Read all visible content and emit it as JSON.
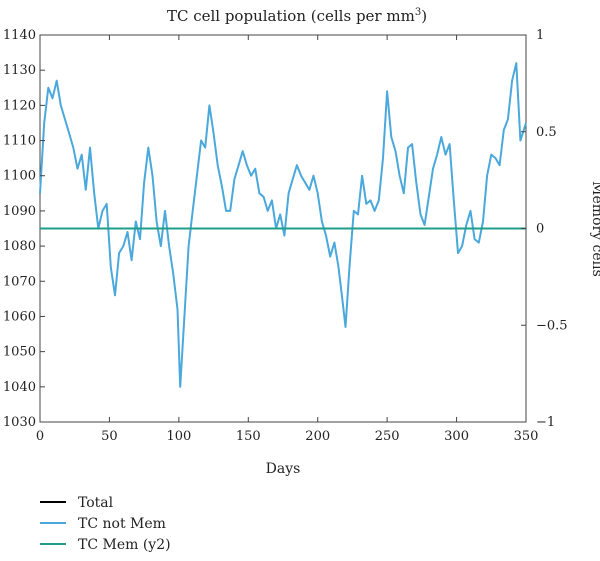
{
  "chart_data": {
    "type": "line",
    "title": "TC cell population (cells per mm",
    "title_superscript": "3",
    "title_close": ")",
    "xlabel": "Days",
    "ylabel": "",
    "y2label": "Memory cells",
    "xlim": [
      0,
      350
    ],
    "ylim": [
      1030,
      1140
    ],
    "y2lim": [
      -1,
      1
    ],
    "xticks": [
      "0",
      "50",
      "100",
      "150",
      "200",
      "250",
      "300",
      "350"
    ],
    "yticks": [
      "1030",
      "1040",
      "1050",
      "1060",
      "1070",
      "1080",
      "1090",
      "1100",
      "1110",
      "1120",
      "1130",
      "1140"
    ],
    "y2ticks": [
      "−1",
      "−0.5",
      "0",
      "0.5",
      "1"
    ],
    "grid": false,
    "legend_position": "bottom-left",
    "series": [
      {
        "name": "Total",
        "color": "#000000",
        "axis": "y",
        "x": [
          0,
          3,
          6,
          9,
          12,
          15,
          18,
          21,
          24,
          27,
          30,
          33,
          36,
          39,
          42,
          45,
          48,
          51,
          54,
          57,
          60,
          63,
          66,
          69,
          72,
          75,
          78,
          81,
          84,
          87,
          90,
          93,
          96,
          99,
          101,
          104,
          107,
          110,
          113,
          116,
          119,
          122,
          125,
          128,
          131,
          134,
          137,
          140,
          143,
          146,
          149,
          152,
          155,
          158,
          161,
          164,
          167,
          170,
          173,
          176,
          179,
          182,
          185,
          188,
          191,
          194,
          197,
          200,
          203,
          206,
          209,
          212,
          215,
          218,
          220,
          223,
          226,
          229,
          232,
          235,
          238,
          241,
          244,
          247,
          250,
          253,
          256,
          259,
          262,
          265,
          268,
          271,
          274,
          277,
          280,
          283,
          286,
          289,
          292,
          295,
          298,
          301,
          304,
          307,
          310,
          313,
          316,
          319,
          322,
          325,
          328,
          331,
          334,
          337,
          340,
          343,
          346,
          350
        ],
        "y": [
          1095,
          1115,
          1125,
          1122,
          1127,
          1120,
          1116,
          1112,
          1108,
          1102,
          1106,
          1096,
          1108,
          1095,
          1085,
          1090,
          1092,
          1074,
          1066,
          1078,
          1080,
          1084,
          1076,
          1087,
          1082,
          1098,
          1108,
          1100,
          1087,
          1080,
          1090,
          1080,
          1072,
          1062,
          1040,
          1060,
          1080,
          1090,
          1100,
          1110,
          1108,
          1120,
          1112,
          1103,
          1097,
          1090,
          1090,
          1099,
          1103,
          1107,
          1103,
          1100,
          1102,
          1095,
          1094,
          1090,
          1093,
          1085,
          1089,
          1083,
          1095,
          1099,
          1103,
          1100,
          1098,
          1096,
          1100,
          1095,
          1087,
          1083,
          1077,
          1081,
          1074,
          1064,
          1057,
          1075,
          1090,
          1089,
          1100,
          1092,
          1093,
          1090,
          1093,
          1105,
          1124,
          1111,
          1107,
          1100,
          1095,
          1108,
          1109,
          1098,
          1089,
          1086,
          1094,
          1102,
          1106,
          1111,
          1106,
          1109,
          1093,
          1078,
          1080,
          1086,
          1090,
          1082,
          1081,
          1087,
          1100,
          1106,
          1105,
          1103,
          1113,
          1116,
          1127,
          1132,
          1110,
          1115
        ],
        "visible": false
      },
      {
        "name": "TC not Mem",
        "color": "#4aa8dc",
        "axis": "y",
        "x": [
          0,
          3,
          6,
          9,
          12,
          15,
          18,
          21,
          24,
          27,
          30,
          33,
          36,
          39,
          42,
          45,
          48,
          51,
          54,
          57,
          60,
          63,
          66,
          69,
          72,
          75,
          78,
          81,
          84,
          87,
          90,
          93,
          96,
          99,
          101,
          104,
          107,
          110,
          113,
          116,
          119,
          122,
          125,
          128,
          131,
          134,
          137,
          140,
          143,
          146,
          149,
          152,
          155,
          158,
          161,
          164,
          167,
          170,
          173,
          176,
          179,
          182,
          185,
          188,
          191,
          194,
          197,
          200,
          203,
          206,
          209,
          212,
          215,
          218,
          220,
          223,
          226,
          229,
          232,
          235,
          238,
          241,
          244,
          247,
          250,
          253,
          256,
          259,
          262,
          265,
          268,
          271,
          274,
          277,
          280,
          283,
          286,
          289,
          292,
          295,
          298,
          301,
          304,
          307,
          310,
          313,
          316,
          319,
          322,
          325,
          328,
          331,
          334,
          337,
          340,
          343,
          346,
          350
        ],
        "y": [
          1095,
          1115,
          1125,
          1122,
          1127,
          1120,
          1116,
          1112,
          1108,
          1102,
          1106,
          1096,
          1108,
          1095,
          1085,
          1090,
          1092,
          1074,
          1066,
          1078,
          1080,
          1084,
          1076,
          1087,
          1082,
          1098,
          1108,
          1100,
          1087,
          1080,
          1090,
          1080,
          1072,
          1062,
          1040,
          1060,
          1080,
          1090,
          1100,
          1110,
          1108,
          1120,
          1112,
          1103,
          1097,
          1090,
          1090,
          1099,
          1103,
          1107,
          1103,
          1100,
          1102,
          1095,
          1094,
          1090,
          1093,
          1085,
          1089,
          1083,
          1095,
          1099,
          1103,
          1100,
          1098,
          1096,
          1100,
          1095,
          1087,
          1083,
          1077,
          1081,
          1074,
          1064,
          1057,
          1075,
          1090,
          1089,
          1100,
          1092,
          1093,
          1090,
          1093,
          1105,
          1124,
          1111,
          1107,
          1100,
          1095,
          1108,
          1109,
          1098,
          1089,
          1086,
          1094,
          1102,
          1106,
          1111,
          1106,
          1109,
          1093,
          1078,
          1080,
          1086,
          1090,
          1082,
          1081,
          1087,
          1100,
          1106,
          1105,
          1103,
          1113,
          1116,
          1127,
          1132,
          1110,
          1115
        ]
      },
      {
        "name": "TC Mem (y2)",
        "color": "#1f9e89",
        "axis": "y2",
        "x": [
          0,
          350
        ],
        "y": [
          0,
          0
        ]
      }
    ]
  }
}
